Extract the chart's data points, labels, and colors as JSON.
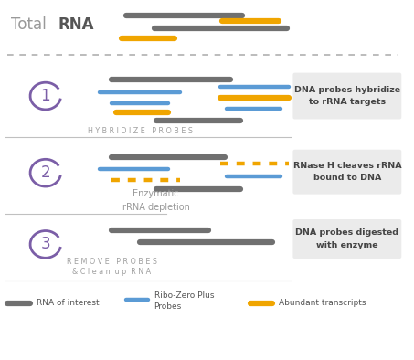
{
  "bg_color": "#ffffff",
  "gray": "#707070",
  "blue": "#5b9bd5",
  "orange": "#f0a500",
  "purple": "#7b5ea7",
  "label_box_color": "#ebebeb",
  "dashed_line_color": "#b0b0b0",
  "section_line_color": "#c0c0c0",
  "step_label_color": "#a0a0a0",
  "figsize": [
    4.53,
    3.94
  ],
  "dpi": 100,
  "hybridize_label": "H Y B R I D I Z E   P R O B E S",
  "remove_label_1": "R E M O V E   P R O B E S",
  "remove_label_2": "& C l e a n  u p  R N A",
  "enzymatic_label": "Enzymatic\nrRNA depletion",
  "step1_box_text": "DNA probes hybridize\nto rRNA targets",
  "step2_box_text": "RNase H cleaves rRNA\nbound to DNA",
  "step3_box_text": "DNA probes digested\nwith enzyme",
  "legend_gray": "RNA of interest",
  "legend_blue_1": "Ribo-Zero Plus",
  "legend_blue_2": "Probes",
  "legend_orange": "Abundant transcripts"
}
